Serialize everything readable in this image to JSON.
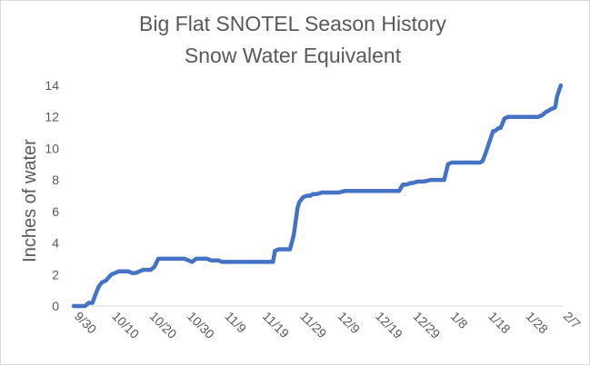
{
  "chart_data": {
    "type": "line",
    "title_line1": "Big Flat SNOTEL Season History",
    "title_line2": "Snow Water Equivalent",
    "xlabel": "",
    "ylabel": "Inches of water",
    "ylim": [
      0,
      14
    ],
    "yticks": [
      0,
      2,
      4,
      6,
      8,
      10,
      12,
      14
    ],
    "xlim": [
      0,
      130
    ],
    "xticks": [
      {
        "x": 0,
        "label": "9/30"
      },
      {
        "x": 10,
        "label": "10/10"
      },
      {
        "x": 20,
        "label": "10/20"
      },
      {
        "x": 30,
        "label": "10/30"
      },
      {
        "x": 40,
        "label": "11/9"
      },
      {
        "x": 50,
        "label": "11/19"
      },
      {
        "x": 60,
        "label": "11/29"
      },
      {
        "x": 70,
        "label": "12/9"
      },
      {
        "x": 80,
        "label": "12/19"
      },
      {
        "x": 90,
        "label": "12/29"
      },
      {
        "x": 100,
        "label": "1/8"
      },
      {
        "x": 110,
        "label": "1/18"
      },
      {
        "x": 120,
        "label": "1/28"
      },
      {
        "x": 130,
        "label": "2/7"
      }
    ],
    "grid": false,
    "legend": "none",
    "series_color": "#4472c4",
    "series": [
      {
        "x": [
          0,
          3,
          4,
          5,
          5.6,
          6.6,
          7.5,
          8.5,
          10,
          11,
          12,
          13,
          14.5,
          15.5,
          16.5,
          17.5,
          18.5,
          19.5,
          20.5,
          21.5,
          22.5,
          23.5,
          24.5,
          25.5,
          26.5,
          27.5,
          28.5,
          29.5,
          30.5,
          31.5,
          32.5,
          33.5,
          34.5,
          35.5,
          36.5,
          37.5,
          38.5,
          39.5,
          43.5,
          48.5,
          52.5,
          53,
          53.5,
          54.5,
          55.5,
          56.5,
          57.5,
          58.5,
          59.5,
          60,
          61,
          62,
          63,
          63.5,
          64.5,
          66,
          68,
          70.5,
          72,
          75,
          82,
          86.5,
          87.5,
          88.5,
          89.5,
          90,
          91.5,
          93,
          95,
          97,
          98.5,
          99.5,
          100.5,
          101.5,
          103,
          108,
          108.7,
          109.5,
          110.5,
          111.5,
          112,
          113,
          113.5,
          114.5,
          115.5,
          122.5,
          123.5,
          124.5,
          125.5,
          127,
          128,
          128.5,
          129.5
        ],
        "values": [
          0,
          0,
          0.2,
          0.2,
          0.6,
          1.2,
          1.5,
          1.6,
          2.0,
          2.1,
          2.2,
          2.2,
          2.2,
          2.1,
          2.1,
          2.2,
          2.3,
          2.3,
          2.3,
          2.5,
          3.0,
          3.0,
          3.0,
          3.0,
          3.0,
          3.0,
          3.0,
          3.0,
          2.9,
          2.8,
          3.0,
          3.0,
          3.0,
          3.0,
          2.9,
          2.9,
          2.9,
          2.8,
          2.8,
          2.8,
          2.8,
          2.8,
          3.5,
          3.6,
          3.6,
          3.6,
          3.6,
          4.5,
          6.2,
          6.6,
          6.9,
          7.0,
          7.0,
          7.1,
          7.1,
          7.2,
          7.2,
          7.2,
          7.3,
          7.3,
          7.3,
          7.3,
          7.7,
          7.7,
          7.8,
          7.8,
          7.9,
          7.9,
          8.0,
          8.0,
          8.0,
          9.0,
          9.1,
          9.1,
          9.1,
          9.1,
          9.2,
          9.7,
          10.4,
          11.1,
          11.1,
          11.3,
          11.3,
          11.9,
          12.0,
          12.0,
          12.0,
          12.1,
          12.3,
          12.5,
          12.6,
          13.3,
          14.0
        ]
      }
    ]
  }
}
